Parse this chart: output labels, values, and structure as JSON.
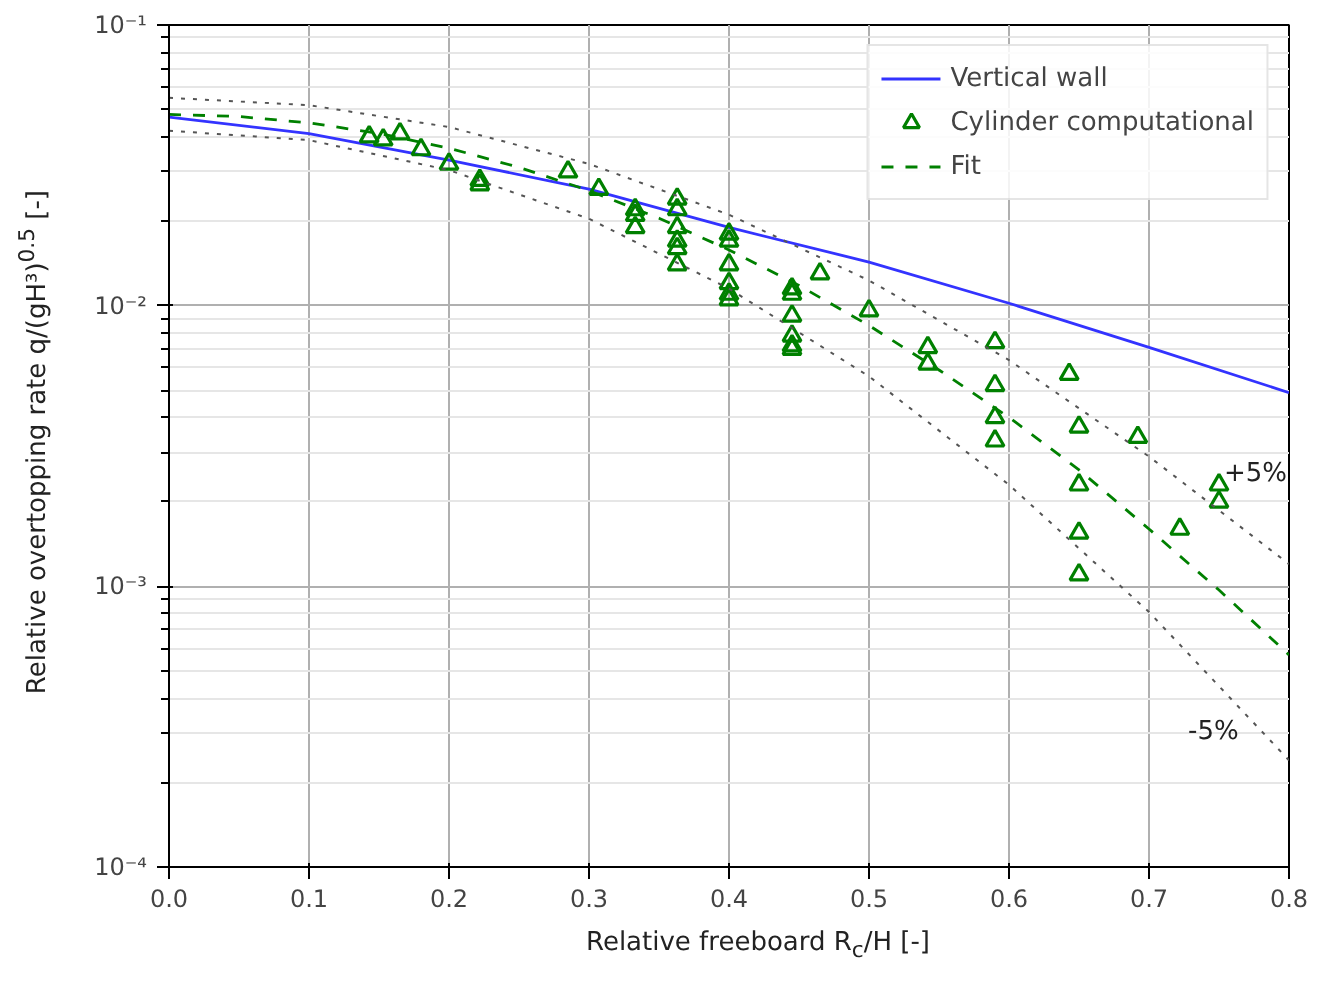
{
  "chart_data": {
    "type": "scatter",
    "xlabel": "Relative freeboard R$_{c}$/H [-]",
    "ylabel": "Relative overtopping rate q/(gH³)$^{0.5}$ [-]",
    "log": "y",
    "grid": true,
    "legend": "top right",
    "xlim": [
      0,
      0.8
    ],
    "xticks": [
      {
        "value": 0,
        "label": "0.0"
      },
      0.1,
      0.2,
      0.3,
      0.4,
      0.5,
      0.6,
      0.7,
      0.8
    ],
    "ylim": [
      0.0001,
      0.1
    ],
    "yticks": [
      {
        "value": 0.0001,
        "label": "10⁻⁴"
      },
      {
        "value": 0.001,
        "label": "10⁻³"
      },
      {
        "value": 0.01,
        "label": "10⁻²"
      },
      {
        "value": 0.1,
        "label": "10⁻¹"
      }
    ],
    "series": [
      {
        "name": "Vertical wall",
        "type": "line",
        "color": "#3333ff",
        "line_style": "solid",
        "marker": "none",
        "x": [
          0,
          0.1,
          0.2,
          0.3,
          0.4,
          0.5,
          0.6,
          0.7,
          0.8
        ],
        "values": [
          0.047,
          0.041,
          0.033,
          0.026,
          0.019,
          0.0143,
          0.0102,
          0.0071,
          0.0049
        ]
      },
      {
        "name": "Cylinder computational",
        "color": "#008000",
        "marker": "triangle",
        "x": [
          0.143,
          0.153,
          0.165,
          0.18,
          0.2,
          0.222,
          0.222,
          0.285,
          0.307,
          0.333,
          0.333,
          0.333,
          0.363,
          0.363,
          0.363,
          0.363,
          0.363,
          0.363,
          0.4,
          0.4,
          0.4,
          0.4,
          0.4,
          0.4,
          0.445,
          0.445,
          0.445,
          0.445,
          0.445,
          0.445,
          0.465,
          0.5,
          0.542,
          0.542,
          0.59,
          0.59,
          0.59,
          0.59,
          0.643,
          0.65,
          0.65,
          0.65,
          0.65,
          0.692,
          0.722,
          0.75,
          0.75
        ],
        "values": [
          0.04,
          0.039,
          0.041,
          0.036,
          0.032,
          0.028,
          0.027,
          0.03,
          0.026,
          0.022,
          0.019,
          0.021,
          0.024,
          0.022,
          0.019,
          0.017,
          0.016,
          0.014,
          0.018,
          0.017,
          0.014,
          0.012,
          0.011,
          0.0105,
          0.0115,
          0.011,
          0.0092,
          0.0078,
          0.0072,
          0.007,
          0.013,
          0.0096,
          0.0071,
          0.0062,
          0.0074,
          0.0052,
          0.004,
          0.0033,
          0.0057,
          0.0037,
          0.0023,
          0.00155,
          0.0011,
          0.0034,
          0.0016,
          0.0023,
          0.002
        ]
      },
      {
        "name": "Fit",
        "type": "line",
        "color": "#008000",
        "line_style": "dashed",
        "marker": "none",
        "x": [
          0,
          0.05,
          0.1,
          0.15,
          0.2,
          0.25,
          0.3,
          0.35,
          0.4,
          0.45,
          0.5,
          0.55,
          0.6,
          0.65,
          0.7,
          0.75,
          0.8
        ],
        "values": [
          0.048,
          0.0472,
          0.0448,
          0.0411,
          0.0364,
          0.0311,
          0.0257,
          0.0205,
          0.0158,
          0.0118,
          0.0085,
          0.0059,
          0.004,
          0.0026,
          0.0016,
          0.00097,
          0.00057
        ]
      },
      {
        "name": "+5%",
        "type": "line",
        "color": "#555555",
        "line_style": "dotted",
        "marker": "none",
        "x": [
          0,
          0.1,
          0.2,
          0.3,
          0.4,
          0.5,
          0.6,
          0.7,
          0.8
        ],
        "values": [
          0.055,
          0.0518,
          0.0433,
          0.032,
          0.0211,
          0.0123,
          0.0064,
          0.0029,
          0.0012
        ]
      },
      {
        "name": "-5%",
        "type": "line",
        "color": "#555555",
        "line_style": "dotted",
        "marker": "none",
        "x": [
          0,
          0.1,
          0.2,
          0.3,
          0.4,
          0.5,
          0.6,
          0.7,
          0.8
        ],
        "values": [
          0.042,
          0.0389,
          0.0304,
          0.0204,
          0.0115,
          0.0056,
          0.0023,
          0.00081,
          0.00024
        ]
      }
    ]
  }
}
